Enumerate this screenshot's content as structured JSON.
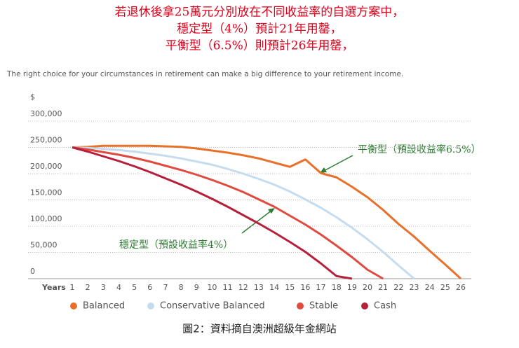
{
  "chart_data": {
    "type": "line",
    "title_lines": [
      "若退休後拿25萬元分別放在不同收益率的自選方案中，",
      "穩定型（4%）預計21年用罄，",
      "平衡型（6.5%）則預計26年用罄，"
    ],
    "subtitle": "The right choice for your circumstances in retirement can make a big difference to your retirement income.",
    "y_label": "$",
    "x_label": "Years",
    "caption": "圖2：資料摘自澳洲超級年金網站",
    "x": [
      1,
      2,
      3,
      4,
      5,
      6,
      7,
      8,
      9,
      10,
      11,
      12,
      13,
      14,
      15,
      16,
      17,
      18,
      19,
      20,
      21,
      22,
      23,
      24,
      25,
      26
    ],
    "xlim": [
      1,
      26
    ],
    "xticks": [
      1,
      2,
      3,
      4,
      5,
      6,
      7,
      8,
      9,
      10,
      11,
      12,
      13,
      14,
      15,
      16,
      17,
      18,
      19,
      20,
      21,
      22,
      23,
      24,
      25,
      26
    ],
    "ylim": [
      0,
      300000
    ],
    "yticks": [
      0,
      {
        "value": 50000,
        "label": "50,000"
      },
      {
        "value": 100000,
        "label": "100,000"
      },
      {
        "value": 150000,
        "label": "150,000"
      },
      {
        "value": 200000,
        "label": "200,000"
      },
      {
        "value": 250000,
        "label": "250,000"
      },
      {
        "value": 300000,
        "label": "300,000"
      }
    ],
    "grid": true,
    "series": [
      {
        "name": "Balanced",
        "color": "#e8702a",
        "values": [
          250000,
          251000,
          253000,
          253000,
          253000,
          253000,
          252000,
          251000,
          248000,
          244000,
          240000,
          235000,
          229000,
          221000,
          213000,
          227000,
          201000,
          193000,
          175000,
          155000,
          131000,
          104000,
          80000,
          53000,
          27000,
          0
        ]
      },
      {
        "name": "Conservative Balanced",
        "color": "#c5dcee",
        "values": [
          250000,
          249000,
          247000,
          245000,
          242000,
          238000,
          234000,
          229000,
          223000,
          217000,
          209000,
          200000,
          190000,
          179000,
          166000,
          151000,
          135000,
          117000,
          97000,
          75000,
          51000,
          25000,
          0,
          null,
          null,
          null
        ]
      },
      {
        "name": "Stable",
        "color": "#e04a3f",
        "values": [
          250000,
          246000,
          241000,
          236000,
          230000,
          223000,
          215000,
          207000,
          198000,
          188000,
          177000,
          165000,
          151000,
          137000,
          120000,
          103000,
          84000,
          63000,
          41000,
          17000,
          0,
          null,
          null,
          null,
          null,
          null
        ]
      },
      {
        "name": "Cash",
        "color": "#b5213a",
        "values": [
          250000,
          242000,
          233000,
          224000,
          214000,
          203000,
          191000,
          179000,
          166000,
          152000,
          137000,
          121000,
          105000,
          88000,
          70000,
          51000,
          29000,
          5000,
          0,
          null,
          null,
          null,
          null,
          null,
          null,
          null
        ]
      }
    ],
    "annotations": [
      {
        "text": "平衡型（預設收益率6.5%）",
        "color": "#2e7d32"
      },
      {
        "text": "穩定型（預設收益率4%）",
        "color": "#2e7d32"
      }
    ]
  }
}
